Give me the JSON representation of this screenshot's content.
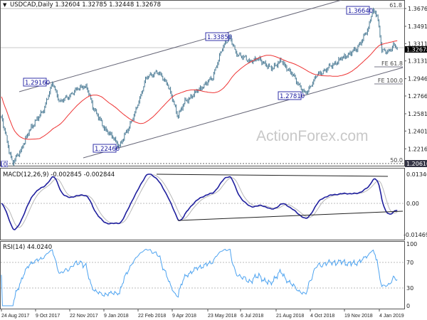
{
  "header": {
    "menu_icon": "triangle-down-icon",
    "title": "USDCAD,Daily 1.32604 1.32785 1.32448 1.32678"
  },
  "watermark": "ActionForex.com",
  "colors": {
    "bars": "#4a7a94",
    "ma": "#ee3333",
    "macd": "#1f1f9e",
    "signal": "#b8b8b8",
    "rsi": "#4da3f0",
    "label_box": "#3333aa"
  },
  "chart_data": [
    {
      "type": "ohlc",
      "title": "USDCAD,Daily",
      "ohlc_last": {
        "open": 1.32604,
        "high": 1.32785,
        "low": 1.32448,
        "close": 1.32678
      },
      "ylim": [
        1.2043,
        1.3765
      ],
      "y_ticks": [
        "1.36760",
        "1.34910",
        "1.33110",
        "1.31310",
        "1.29460",
        "1.27660",
        "1.25810",
        "1.24010",
        "1.22160"
      ],
      "current_price": "1.32678",
      "bottom_level_label": "1.20610",
      "x_ticks": [
        "24 Aug 2017",
        "9 Oct 2017",
        "22 Nov 2017",
        "9 Jan 2018",
        "22 Feb 2018",
        "9 Apr 2018",
        "23 May 2018",
        "6 Jul 2018",
        "21 Aug 2018",
        "4 Oct 2018",
        "19 Nov 2018",
        "4 Jan 2019"
      ],
      "price_path": [
        [
          "2017-08-24",
          1.2545
        ],
        [
          "2017-09-04",
          1.2061
        ],
        [
          "2017-09-12",
          1.22
        ],
        [
          "2017-09-23",
          1.245
        ],
        [
          "2017-10-04",
          1.26
        ],
        [
          "2017-10-15",
          1.29
        ],
        [
          "2017-10-24",
          1.27
        ],
        [
          "2017-11-06",
          1.278
        ],
        [
          "2017-11-19",
          1.287
        ],
        [
          "2017-11-26",
          1.285
        ],
        [
          "2017-12-05",
          1.265
        ],
        [
          "2017-12-19",
          1.245
        ],
        [
          "2018-01-11",
          1.2246
        ],
        [
          "2018-01-20",
          1.24
        ],
        [
          "2018-01-31",
          1.26
        ],
        [
          "2018-02-13",
          1.295
        ],
        [
          "2018-02-28",
          1.302
        ],
        [
          "2018-03-16",
          1.29
        ],
        [
          "2018-04-01",
          1.256
        ],
        [
          "2018-04-11",
          1.27
        ],
        [
          "2018-04-26",
          1.282
        ],
        [
          "2018-05-13",
          1.295
        ],
        [
          "2018-05-28",
          1.33
        ],
        [
          "2018-06-06",
          1.3385
        ],
        [
          "2018-06-15",
          1.322
        ],
        [
          "2018-07-06",
          1.313
        ],
        [
          "2018-07-19",
          1.315
        ],
        [
          "2018-08-01",
          1.305
        ],
        [
          "2018-08-14",
          1.313
        ],
        [
          "2018-08-27",
          1.3
        ],
        [
          "2018-09-13",
          1.2781
        ],
        [
          "2018-09-27",
          1.298
        ],
        [
          "2018-10-10",
          1.305
        ],
        [
          "2018-10-27",
          1.315
        ],
        [
          "2018-11-15",
          1.325
        ],
        [
          "2018-11-30",
          1.345
        ],
        [
          "2018-12-06",
          1.3664
        ],
        [
          "2018-12-12",
          1.36
        ],
        [
          "2018-12-18",
          1.325
        ],
        [
          "2018-12-28",
          1.322
        ],
        [
          "2019-01-02",
          1.33
        ],
        [
          "2019-01-08",
          1.3268
        ]
      ],
      "moving_average": "red line",
      "swing_labels": [
        "1.29160",
        "1.22460",
        "1.33850",
        "1.27810",
        "1.36640"
      ],
      "fib_labels": {
        "top": "61.8",
        "bottom": "50.0",
        "fe618": "FE 61.8",
        "fe100": "FE 100.0"
      },
      "levels": {
        "top": 1.3676,
        "bottom": 1.2061,
        "fe618": 1.3045,
        "fe100": 1.2885
      }
    },
    {
      "type": "line",
      "title": "MACD(12,26,9) -0.002845 -0.002844",
      "params": [
        12,
        26,
        9
      ],
      "ylim": [
        -0.014694,
        0.013461
      ],
      "y_ticks": [
        "0.013461",
        "0.00",
        "-0.014694"
      ]
    },
    {
      "type": "line",
      "title": "RSI(14) 44.0240",
      "period": 14,
      "ylim": [
        0,
        100
      ],
      "y_ticks": [
        "100",
        "70",
        "30",
        "0"
      ]
    }
  ]
}
